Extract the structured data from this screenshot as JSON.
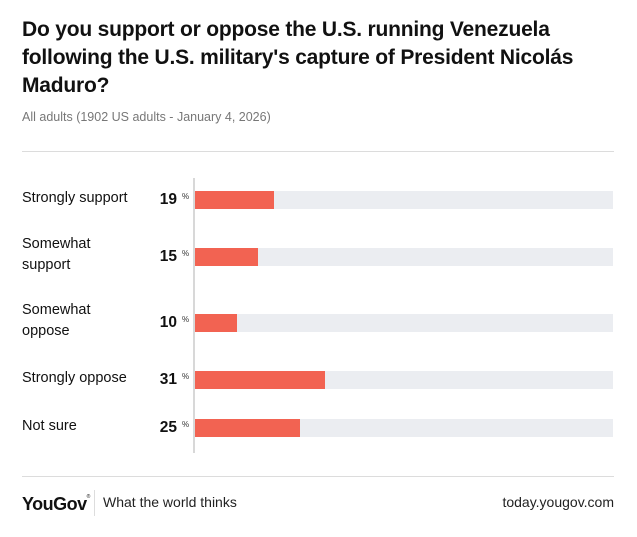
{
  "chart_data": {
    "type": "bar",
    "orientation": "horizontal",
    "title": "Do you support or oppose the U.S. running Venezuela following the U.S. military's capture of President Nicolás Maduro?",
    "subtitle": "All adults (1902 US adults - January 4, 2026)",
    "categories": [
      "Strongly support",
      "Somewhat support",
      "Somewhat oppose",
      "Strongly oppose",
      "Not sure"
    ],
    "values": [
      19,
      15,
      10,
      31,
      25
    ],
    "unit": "%",
    "xlim": [
      0,
      100
    ],
    "grid": false,
    "legend": "none",
    "colors": {
      "bar": "#f26352",
      "track": "#ebedf1"
    }
  },
  "footer": {
    "brand": "YouGov",
    "tagline": "What the world thinks",
    "url": "today.yougov.com"
  }
}
